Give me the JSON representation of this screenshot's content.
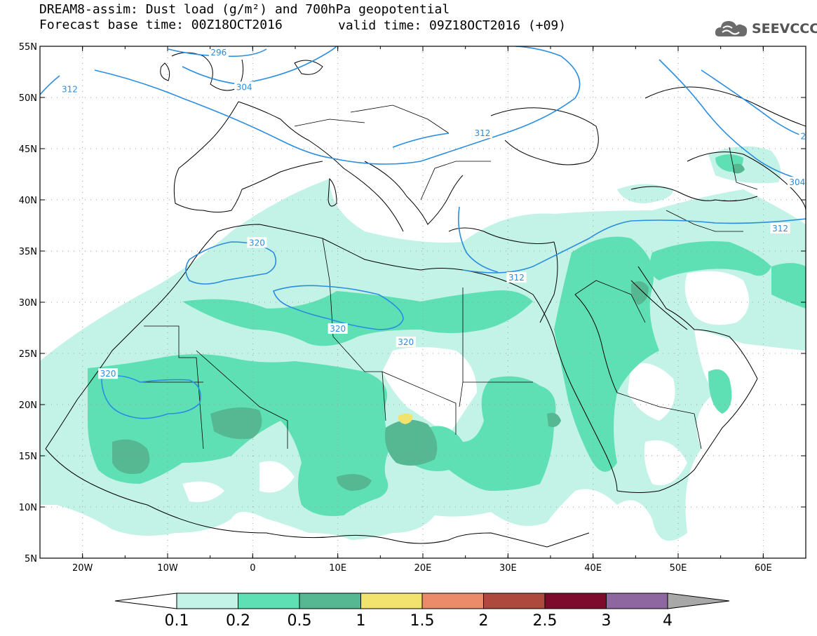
{
  "title_line1": "DREAM8-assim: Dust load (g/m²) and 700hPa geopotential",
  "title_line2a": "Forecast base time: 00Z18OCT2016",
  "title_line2b": "valid time: 09Z18OCT2016 (+09)",
  "logo_text": "SEEVCCC",
  "logo_icon": "cloud-icon",
  "lon_ticks": [
    {
      "label": "20W",
      "v": -20
    },
    {
      "label": "10W",
      "v": -10
    },
    {
      "label": "0",
      "v": 0
    },
    {
      "label": "10E",
      "v": 10
    },
    {
      "label": "20E",
      "v": 20
    },
    {
      "label": "30E",
      "v": 30
    },
    {
      "label": "40E",
      "v": 40
    },
    {
      "label": "50E",
      "v": 50
    },
    {
      "label": "60E",
      "v": 60
    }
  ],
  "lat_ticks": [
    {
      "label": "55N",
      "v": 55
    },
    {
      "label": "50N",
      "v": 50
    },
    {
      "label": "45N",
      "v": 45
    },
    {
      "label": "40N",
      "v": 40
    },
    {
      "label": "35N",
      "v": 35
    },
    {
      "label": "30N",
      "v": 30
    },
    {
      "label": "25N",
      "v": 25
    },
    {
      "label": "20N",
      "v": 20
    },
    {
      "label": "15N",
      "v": 15
    },
    {
      "label": "10N",
      "v": 10
    },
    {
      "label": "5N",
      "v": 5
    }
  ],
  "extent": {
    "lon_min": -25,
    "lon_max": 65,
    "lat_min": 5,
    "lat_max": 55
  },
  "colorbar": {
    "labels": [
      "0.1",
      "0.2",
      "0.5",
      "1",
      "1.5",
      "2",
      "2.5",
      "3",
      "4"
    ],
    "colors": [
      "#c3f2e6",
      "#5fe0b4",
      "#55b893",
      "#f2e26e",
      "#eb8b6a",
      "#ad4a3d",
      "#7e0a2c",
      "#8f67a0"
    ],
    "under_color": "#ffffff",
    "over_color": "#a8a8a8"
  },
  "contour_labels": [
    {
      "text": "296",
      "lon": -4,
      "lat": 54.4
    },
    {
      "text": "304",
      "lon": -1,
      "lat": 51.0
    },
    {
      "text": "312",
      "lon": -21.5,
      "lat": 50.8
    },
    {
      "text": "312",
      "lon": 27,
      "lat": 46.5
    },
    {
      "text": "312",
      "lon": 31,
      "lat": 32.4
    },
    {
      "text": "312",
      "lon": 62,
      "lat": 37.2
    },
    {
      "text": "304",
      "lon": 64,
      "lat": 41.7
    },
    {
      "text": "2",
      "lon": 64.7,
      "lat": 46.2
    },
    {
      "text": "320",
      "lon": 0.5,
      "lat": 35.8
    },
    {
      "text": "320",
      "lon": 10,
      "lat": 27.4
    },
    {
      "text": "320",
      "lon": 18,
      "lat": 26.1
    },
    {
      "text": "320",
      "lon": -17,
      "lat": 23.0
    }
  ],
  "colors": {
    "contour": "#2a8de0",
    "coast": "#000000",
    "grid": "#9a9a9a"
  }
}
